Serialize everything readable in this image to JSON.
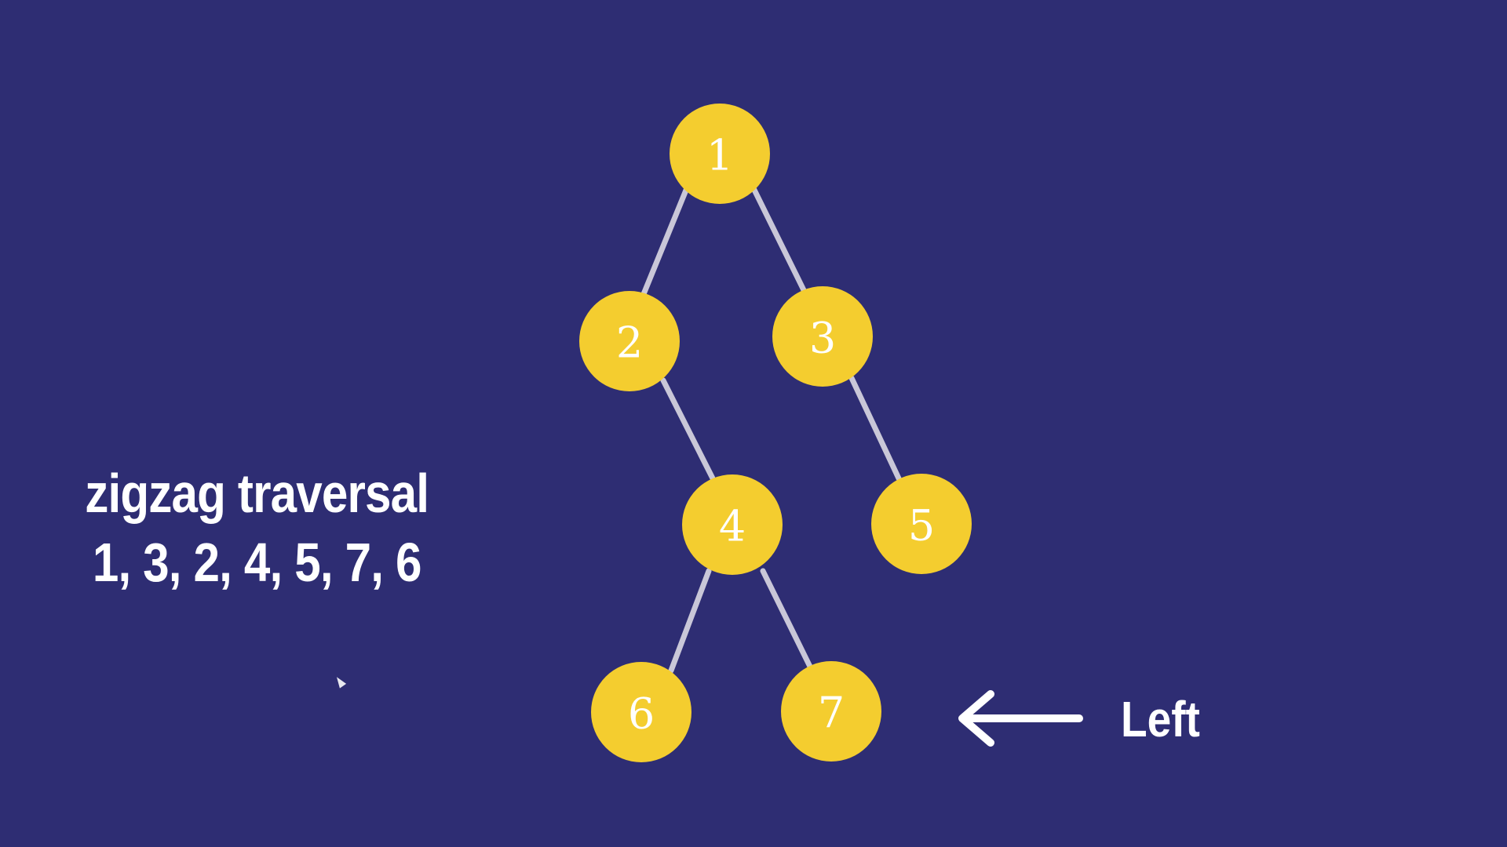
{
  "caption": {
    "title": "zigzag traversal",
    "sequence": "1, 3, 2, 4, 5, 7, 6"
  },
  "direction": {
    "label": "Left",
    "arrow_icon": "arrow-left-icon"
  },
  "tree": {
    "nodes": [
      "1",
      "2",
      "3",
      "4",
      "5",
      "6",
      "7"
    ],
    "edges": [
      [
        "1",
        "2"
      ],
      [
        "1",
        "3"
      ],
      [
        "2",
        "4"
      ],
      [
        "3",
        "5"
      ],
      [
        "4",
        "6"
      ],
      [
        "4",
        "7"
      ]
    ]
  },
  "colors": {
    "background": "#2e2d73",
    "node_fill": "#f4cd2f",
    "edge": "#c9c7d8",
    "text": "#ffffff"
  }
}
